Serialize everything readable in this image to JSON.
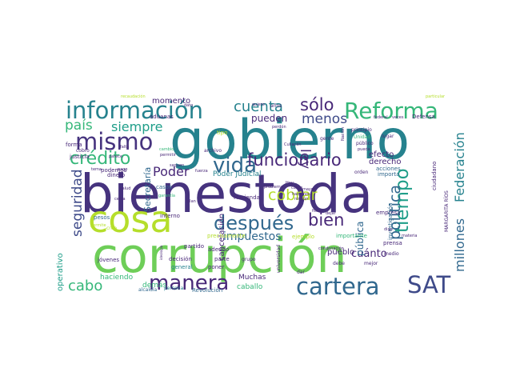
{
  "palette": {
    "dark_purple": "#482878",
    "deep_purple": "#46337e",
    "indigo": "#3e4a89",
    "blue": "#31688e",
    "steel": "#26828e",
    "teal": "#1f9e89",
    "green": "#35b779",
    "light_green": "#6ece58",
    "lime": "#b5de2b",
    "yellow": "#fde725"
  },
  "words": [
    {
      "text": "gobierno",
      "color": "#26828e"
    },
    {
      "text": "bienestoda",
      "color": "#46337e"
    },
    {
      "text": "corrupción",
      "color": "#6ece58"
    },
    {
      "text": "cosa",
      "color": "#b5de2b"
    },
    {
      "text": "información",
      "color": "#26828e"
    },
    {
      "text": "Reforma",
      "color": "#35b779"
    },
    {
      "text": "mismo",
      "color": "#46337e"
    },
    {
      "text": "vida",
      "color": "#31688e"
    },
    {
      "text": "funcionario",
      "color": "#482878"
    },
    {
      "text": "después",
      "color": "#31688e"
    },
    {
      "text": "cartera",
      "color": "#31688e"
    },
    {
      "text": "SAT",
      "color": "#3e4a89"
    },
    {
      "text": "manera",
      "color": "#482878"
    },
    {
      "text": "tiempo",
      "color": "#1f9e89"
    },
    {
      "text": "crédito",
      "color": "#35b779"
    },
    {
      "text": "cobrar",
      "color": "#b5de2b"
    },
    {
      "text": "bien",
      "color": "#482878"
    },
    {
      "text": "política",
      "color": "#31688e"
    },
    {
      "text": "sólo",
      "color": "#482878"
    },
    {
      "text": "cuenta",
      "color": "#26828e"
    },
    {
      "text": "menos",
      "color": "#3e4a89"
    },
    {
      "text": "ley",
      "color": "#482878"
    },
    {
      "text": "país",
      "color": "#35b779"
    },
    {
      "text": "siempre",
      "color": "#1f9e89"
    },
    {
      "text": "Poder",
      "color": "#482878"
    },
    {
      "text": "seguridad",
      "color": "#3e4a89"
    },
    {
      "text": "millones",
      "color": "#31688e"
    },
    {
      "text": "Federación",
      "color": "#26828e"
    },
    {
      "text": "cabo",
      "color": "#35b779"
    },
    {
      "text": "impuestos",
      "color": "#31688e"
    },
    {
      "text": "cuánto",
      "color": "#482878"
    },
    {
      "text": "pueblo",
      "color": "#482878"
    },
    {
      "text": "pueden",
      "color": "#482878"
    },
    {
      "text": "momento",
      "color": "#482878"
    },
    {
      "text": "derecho",
      "color": "#482878"
    },
    {
      "text": "efecto",
      "color": "#482878"
    },
    {
      "text": "pública",
      "color": "#31688e"
    },
    {
      "text": "Secretaría",
      "color": "#31688e"
    },
    {
      "text": "cancelación",
      "color": "#482878"
    },
    {
      "text": "Poder Judicial",
      "color": "#26828e"
    },
    {
      "text": "operativo",
      "color": "#1f9e89"
    },
    {
      "text": "haciendo",
      "color": "#35b779"
    },
    {
      "text": "demás",
      "color": "#35b779"
    },
    {
      "text": "Muchas",
      "color": "#482878"
    },
    {
      "text": "caballo",
      "color": "#35b779"
    },
    {
      "text": "precisamente",
      "color": "#b5de2b"
    },
    {
      "text": "ejemplo",
      "color": "#b5de2b"
    },
    {
      "text": "importante",
      "color": "#35b779"
    },
    {
      "text": "Hacienda",
      "color": "#482878"
    },
    {
      "text": "interno",
      "color": "#482878"
    },
    {
      "text": "pesos",
      "color": "#31688e"
    },
    {
      "text": "casos",
      "color": "#31688e"
    },
    {
      "text": "dinero",
      "color": "#482878"
    },
    {
      "text": "podemos",
      "color": "#482878"
    },
    {
      "text": "aduanas",
      "color": "#482878"
    },
    {
      "text": "justicia",
      "color": "#482878"
    },
    {
      "text": "forma",
      "color": "#482878"
    },
    {
      "text": "cobro",
      "color": "#482878"
    },
    {
      "text": "jóvenes",
      "color": "#482878"
    },
    {
      "text": "decisión",
      "color": "#482878"
    },
    {
      "text": "general",
      "color": "#26828e"
    },
    {
      "text": "persona",
      "color": "#26828e"
    },
    {
      "text": "partido",
      "color": "#482878"
    },
    {
      "text": "adeudo",
      "color": "#482878"
    },
    {
      "text": "parte",
      "color": "#482878"
    },
    {
      "text": "poner",
      "color": "#482878"
    },
    {
      "text": "grupo",
      "color": "#482878"
    },
    {
      "text": "universidad",
      "color": "#482878"
    },
    {
      "text": "empresa",
      "color": "#482878"
    },
    {
      "text": "prensa",
      "color": "#482878"
    },
    {
      "text": "investigación",
      "color": "#31688e"
    },
    {
      "text": "ciudadano",
      "color": "#482878"
    },
    {
      "text": "acciones",
      "color": "#31688e"
    },
    {
      "text": "importa",
      "color": "#31688e"
    },
    {
      "text": "orden",
      "color": "#482878"
    },
    {
      "text": "medio",
      "color": "#482878"
    },
    {
      "text": "mejor",
      "color": "#482878"
    },
    {
      "text": "debe",
      "color": "#482878"
    },
    {
      "text": "dar",
      "color": "#482878"
    },
    {
      "text": "Revolución",
      "color": "#31688e"
    },
    {
      "text": "alcaldía",
      "color": "#31688e"
    },
    {
      "text": "MARGARITA RÍOS",
      "color": "#482878"
    },
    {
      "text": "Defensa",
      "color": "#482878"
    },
    {
      "text": "lugar",
      "color": "#482878"
    },
    {
      "text": "público",
      "color": "#482878"
    },
    {
      "text": "Unidad",
      "color": "#35b779"
    },
    {
      "text": "principio",
      "color": "#482878"
    },
    {
      "text": "gente",
      "color": "#482878"
    },
    {
      "text": "Nación",
      "color": "#482878"
    },
    {
      "text": "federal",
      "color": "#482878"
    },
    {
      "text": "veces",
      "color": "#482878"
    },
    {
      "text": "pueda",
      "color": "#482878"
    },
    {
      "text": "perdón",
      "color": "#482878"
    },
    {
      "text": "quiero",
      "color": "#482878"
    },
    {
      "text": "años",
      "color": "#482878"
    },
    {
      "text": "dato",
      "color": "#482878"
    },
    {
      "text": "tipo",
      "color": "#b5de2b"
    },
    {
      "text": "archivo",
      "color": "#482878"
    },
    {
      "text": "fuerza",
      "color": "#482878"
    },
    {
      "text": "permitir",
      "color": "#482878"
    },
    {
      "text": "Culiacán",
      "color": "#482878"
    },
    {
      "text": "hacemos",
      "color": "#482878"
    },
    {
      "text": "mayor",
      "color": "#482878"
    },
    {
      "text": "cargo",
      "color": "#482878"
    },
    {
      "text": "ningún",
      "color": "#482878"
    },
    {
      "text": "problema",
      "color": "#482878"
    },
    {
      "text": "plan",
      "color": "#482878"
    },
    {
      "text": "garantía",
      "color": "#35b779"
    },
    {
      "text": "cambio",
      "color": "#35b779"
    },
    {
      "text": "creo",
      "color": "#b5de2b"
    },
    {
      "text": "permite",
      "color": "#b5de2b"
    },
    {
      "text": "fiscal",
      "color": "#482878"
    },
    {
      "text": "dejar",
      "color": "#482878"
    },
    {
      "text": "digo",
      "color": "#482878"
    },
    {
      "text": "materia",
      "color": "#482878"
    },
    {
      "text": "condonación",
      "color": "#482878"
    },
    {
      "text": "particular",
      "color": "#b5de2b"
    },
    {
      "text": "recaudación",
      "color": "#b5de2b"
    },
    {
      "text": "ideología",
      "color": "#482878"
    },
    {
      "text": "salud",
      "color": "#482878"
    },
    {
      "text": "pago",
      "color": "#482878"
    },
    {
      "text": "tema",
      "color": "#482878"
    },
    {
      "text": "falta",
      "color": "#482878"
    },
    {
      "text": "Hoy",
      "color": "#482878"
    },
    {
      "text": "saquen",
      "color": "#482878"
    },
    {
      "text": "parece",
      "color": "#482878"
    },
    {
      "text": "cerca",
      "color": "#482878"
    }
  ]
}
